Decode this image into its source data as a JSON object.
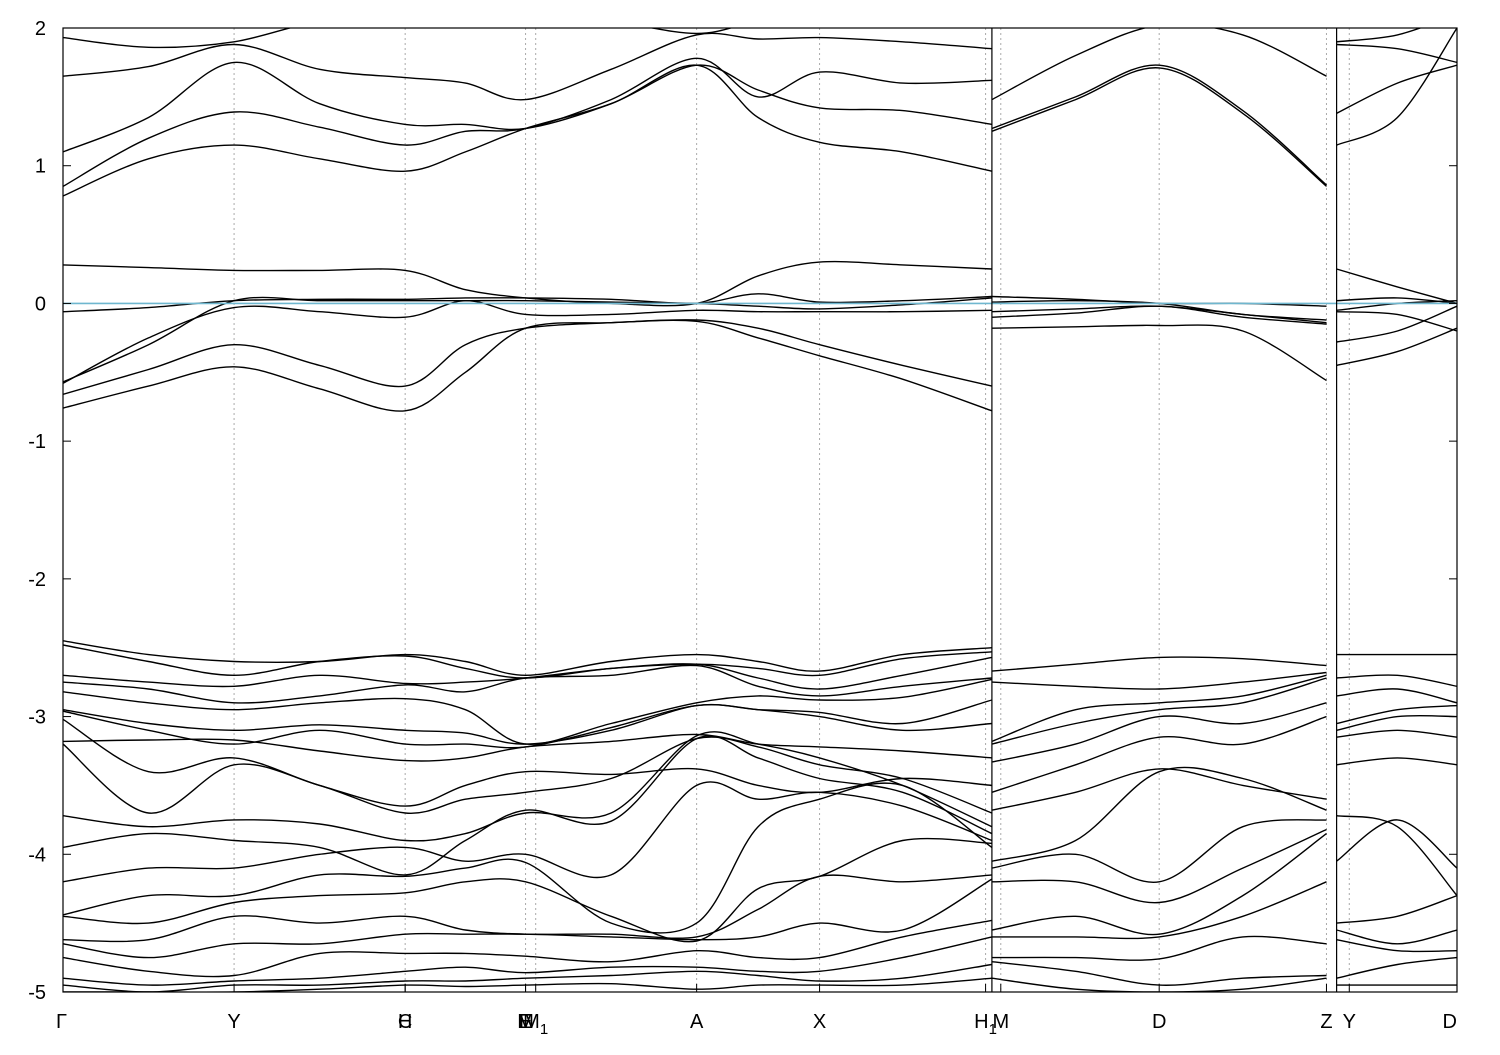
{
  "chart_data": {
    "type": "line",
    "title": "",
    "xlabel": "",
    "ylabel": "",
    "ylim": [
      -5,
      2
    ],
    "y_ticks": [
      -5,
      -4,
      -3,
      -2,
      -1,
      0,
      1,
      2
    ],
    "y_tick_labels": [
      "-5",
      "-4",
      "-3",
      "-2",
      "-1",
      "0",
      "1",
      "2"
    ],
    "x_range": [
      0,
      11
    ],
    "grid": "vertical dotted at high-symmetry points",
    "legend": "none",
    "fermi_level": 0,
    "colors": {
      "bands": "#000000",
      "fermi": "#6fb7cf",
      "grid": "#aaaaaa"
    },
    "high_symmetry_points": [
      {
        "label": "Γ",
        "x": 0
      },
      {
        "label": "Y",
        "x": 1.35
      },
      {
        "label": "C",
        "x": 2.7
      },
      {
        "label": "H",
        "x": 2.7
      },
      {
        "label": "M",
        "x": 3.65
      },
      {
        "label": "E",
        "x": 3.65
      },
      {
        "label": "M1",
        "x": 3.73
      },
      {
        "label": "A",
        "x": 5.0
      },
      {
        "label": "X",
        "x": 5.97
      },
      {
        "label": "H1",
        "x": 7.28
      },
      {
        "label": "M",
        "x": 7.4
      },
      {
        "label": "D",
        "x": 8.65
      },
      {
        "label": "Z",
        "x": 9.97
      },
      {
        "label": "Y",
        "x": 10.15
      },
      {
        "label": "D",
        "x": 11.0
      }
    ],
    "panel_breaks": [
      7.33,
      10.05
    ],
    "segments": [
      {
        "x": [
          0,
          0.675,
          1.35,
          2.025,
          2.7,
          3.175,
          3.65,
          4.325,
          5.0,
          5.485,
          5.97,
          6.625,
          7.33
        ],
        "bands": [
          [
            1.93,
            1.86,
            1.9,
            2.05,
            2.1,
            2.1,
            2.1,
            2.05,
            1.96,
            2.05,
            2.1,
            2.1,
            2.1
          ],
          [
            1.65,
            1.72,
            1.88,
            1.7,
            1.64,
            1.6,
            1.48,
            1.7,
            1.95,
            1.92,
            1.93,
            1.9,
            1.85
          ],
          [
            1.1,
            1.35,
            1.75,
            1.45,
            1.3,
            1.3,
            1.27,
            1.45,
            1.73,
            1.55,
            1.42,
            1.4,
            1.3
          ],
          [
            0.85,
            1.2,
            1.39,
            1.28,
            1.15,
            1.25,
            1.27,
            1.48,
            1.78,
            1.5,
            1.68,
            1.6,
            1.62
          ],
          [
            0.78,
            1.05,
            1.15,
            1.05,
            0.96,
            1.1,
            1.27,
            1.45,
            1.73,
            1.35,
            1.17,
            1.1,
            0.96
          ],
          [
            0.28,
            0.26,
            0.24,
            0.24,
            0.24,
            0.1,
            0.04,
            0.0,
            0.0,
            0.2,
            0.3,
            0.28,
            0.25
          ],
          [
            -0.06,
            -0.03,
            0.02,
            0.03,
            0.03,
            0.04,
            0.04,
            0.03,
            0.0,
            0.07,
            0.01,
            0.02,
            0.05
          ],
          [
            -0.57,
            -0.3,
            0.02,
            0.02,
            0.02,
            0.02,
            0.02,
            0.01,
            0.0,
            -0.02,
            -0.04,
            -0.01,
            0.04
          ],
          [
            -0.58,
            -0.25,
            -0.03,
            -0.06,
            -0.1,
            0.02,
            -0.08,
            -0.08,
            -0.05,
            -0.06,
            -0.06,
            -0.06,
            -0.05
          ],
          [
            -0.66,
            -0.48,
            -0.3,
            -0.45,
            -0.6,
            -0.3,
            -0.18,
            -0.14,
            -0.12,
            -0.18,
            -0.3,
            -0.45,
            -0.6
          ],
          [
            -0.76,
            -0.6,
            -0.46,
            -0.62,
            -0.78,
            -0.5,
            -0.18,
            -0.14,
            -0.13,
            -0.25,
            -0.38,
            -0.55,
            -0.78
          ],
          [
            -2.45,
            -2.55,
            -2.6,
            -2.6,
            -2.55,
            -2.6,
            -2.7,
            -2.6,
            -2.55,
            -2.6,
            -2.67,
            -2.55,
            -2.5
          ],
          [
            -2.48,
            -2.6,
            -2.7,
            -2.6,
            -2.56,
            -2.65,
            -2.72,
            -2.65,
            -2.62,
            -2.65,
            -2.7,
            -2.58,
            -2.53
          ],
          [
            -2.7,
            -2.75,
            -2.78,
            -2.7,
            -2.76,
            -2.75,
            -2.72,
            -2.65,
            -2.62,
            -2.72,
            -2.8,
            -2.7,
            -2.57
          ],
          [
            -2.75,
            -2.8,
            -2.9,
            -2.85,
            -2.77,
            -2.82,
            -2.72,
            -2.7,
            -2.63,
            -2.78,
            -2.85,
            -2.78,
            -2.72
          ],
          [
            -2.82,
            -2.9,
            -2.95,
            -2.9,
            -2.87,
            -2.95,
            -3.2,
            -3.05,
            -2.9,
            -2.85,
            -2.88,
            -2.86,
            -2.73
          ],
          [
            -2.95,
            -3.05,
            -3.1,
            -3.06,
            -3.1,
            -3.12,
            -3.2,
            -3.1,
            -2.92,
            -2.95,
            -2.97,
            -3.05,
            -2.88
          ],
          [
            -2.96,
            -3.1,
            -3.2,
            -3.1,
            -3.2,
            -3.2,
            -3.22,
            -3.08,
            -2.92,
            -2.95,
            -3.0,
            -3.1,
            -3.05
          ],
          [
            -3.18,
            -3.17,
            -3.17,
            -3.25,
            -3.32,
            -3.3,
            -3.22,
            -3.18,
            -3.13,
            -3.2,
            -3.22,
            -3.25,
            -3.3
          ],
          [
            -3.02,
            -3.4,
            -3.3,
            -3.5,
            -3.65,
            -3.5,
            -3.4,
            -3.42,
            -3.38,
            -3.5,
            -3.55,
            -3.45,
            -3.5
          ],
          [
            -3.2,
            -3.7,
            -3.35,
            -3.5,
            -3.7,
            -3.6,
            -3.55,
            -3.45,
            -3.16,
            -3.22,
            -3.35,
            -3.45,
            -3.7
          ],
          [
            -3.72,
            -3.8,
            -3.75,
            -3.78,
            -3.9,
            -3.85,
            -3.7,
            -3.7,
            -3.14,
            -3.2,
            -3.3,
            -3.5,
            -3.8
          ],
          [
            -3.95,
            -3.85,
            -3.9,
            -3.95,
            -4.15,
            -3.9,
            -3.68,
            -3.76,
            -3.16,
            -3.3,
            -3.45,
            -3.55,
            -3.85
          ],
          [
            -4.2,
            -4.1,
            -4.1,
            -4.0,
            -3.95,
            -4.05,
            -4.0,
            -4.15,
            -3.5,
            -3.6,
            -3.55,
            -3.65,
            -3.9
          ],
          [
            -4.44,
            -4.3,
            -4.3,
            -4.15,
            -4.16,
            -4.1,
            -4.06,
            -4.5,
            -4.5,
            -3.8,
            -3.6,
            -3.5,
            -3.95
          ],
          [
            -4.45,
            -4.5,
            -4.35,
            -4.3,
            -4.28,
            -4.2,
            -4.2,
            -4.45,
            -4.63,
            -4.25,
            -4.16,
            -3.9,
            -3.92
          ],
          [
            -4.62,
            -4.62,
            -4.45,
            -4.5,
            -4.45,
            -4.55,
            -4.58,
            -4.58,
            -4.6,
            -4.4,
            -4.16,
            -4.2,
            -4.15
          ],
          [
            -4.65,
            -4.75,
            -4.65,
            -4.65,
            -4.58,
            -4.58,
            -4.58,
            -4.6,
            -4.62,
            -4.6,
            -4.5,
            -4.55,
            -4.18
          ],
          [
            -4.75,
            -4.85,
            -4.88,
            -4.72,
            -4.72,
            -4.72,
            -4.74,
            -4.78,
            -4.7,
            -4.75,
            -4.75,
            -4.6,
            -4.48
          ],
          [
            -4.9,
            -4.95,
            -4.92,
            -4.9,
            -4.85,
            -4.82,
            -4.86,
            -4.82,
            -4.82,
            -4.85,
            -4.85,
            -4.75,
            -4.6
          ],
          [
            -4.95,
            -5.0,
            -4.95,
            -4.95,
            -4.92,
            -4.92,
            -4.9,
            -4.88,
            -4.85,
            -4.88,
            -4.92,
            -4.9,
            -4.8
          ],
          [
            -5.0,
            -5.0,
            -5.0,
            -4.98,
            -4.95,
            -4.96,
            -4.95,
            -4.94,
            -4.98,
            -4.95,
            -4.95,
            -4.95,
            -4.9
          ]
        ]
      },
      {
        "x": [
          7.33,
          7.99,
          8.65,
          9.31,
          9.97
        ],
        "bands": [
          [
            1.48,
            1.8,
            2.02,
            1.95,
            1.65
          ],
          [
            1.27,
            1.5,
            1.73,
            1.4,
            0.86
          ],
          [
            1.25,
            1.48,
            1.71,
            1.38,
            0.85
          ],
          [
            0.05,
            0.03,
            0.0,
            0.0,
            -0.02
          ],
          [
            0.01,
            0.02,
            0.0,
            -0.08,
            -0.12
          ],
          [
            -0.06,
            -0.04,
            -0.02,
            -0.08,
            -0.14
          ],
          [
            -0.1,
            -0.07,
            -0.02,
            -0.1,
            -0.15
          ],
          [
            -0.18,
            -0.17,
            -0.16,
            -0.2,
            -0.56
          ],
          [
            -2.67,
            -2.62,
            -2.57,
            -2.58,
            -2.63
          ],
          [
            -2.75,
            -2.78,
            -2.8,
            -2.75,
            -2.68
          ],
          [
            -3.18,
            -2.95,
            -2.9,
            -2.85,
            -2.7
          ],
          [
            -3.2,
            -3.05,
            -2.95,
            -2.9,
            -2.72
          ],
          [
            -3.33,
            -3.2,
            -3.0,
            -3.05,
            -2.9
          ],
          [
            -3.55,
            -3.35,
            -3.15,
            -3.2,
            -3.0
          ],
          [
            -3.68,
            -3.55,
            -3.38,
            -3.5,
            -3.6
          ],
          [
            -4.05,
            -3.9,
            -3.4,
            -3.45,
            -3.68
          ],
          [
            -4.1,
            -4.0,
            -4.2,
            -3.8,
            -3.75
          ],
          [
            -4.2,
            -4.2,
            -4.35,
            -4.1,
            -3.82
          ],
          [
            -4.55,
            -4.45,
            -4.58,
            -4.3,
            -3.85
          ],
          [
            -4.6,
            -4.6,
            -4.6,
            -4.45,
            -4.2
          ],
          [
            -4.75,
            -4.75,
            -4.76,
            -4.6,
            -4.65
          ],
          [
            -4.78,
            -4.85,
            -4.95,
            -4.9,
            -4.88
          ],
          [
            -4.9,
            -4.98,
            -5.0,
            -4.98,
            -4.9
          ]
        ]
      },
      {
        "x": [
          10.05,
          10.53,
          11.0
        ],
        "bands": [
          [
            1.9,
            1.95,
            2.1
          ],
          [
            1.88,
            1.85,
            1.75
          ],
          [
            1.38,
            1.6,
            1.73
          ],
          [
            1.15,
            1.35,
            2.0
          ],
          [
            0.25,
            0.12,
            0.0
          ],
          [
            0.02,
            0.04,
            0.0
          ],
          [
            -0.05,
            0.0,
            0.02
          ],
          [
            -0.06,
            -0.08,
            -0.2
          ],
          [
            -0.28,
            -0.2,
            -0.02
          ],
          [
            -0.45,
            -0.35,
            -0.18
          ],
          [
            -2.55,
            -2.55,
            -2.55
          ],
          [
            -2.72,
            -2.7,
            -2.78
          ],
          [
            -2.85,
            -2.8,
            -2.9
          ],
          [
            -3.05,
            -2.95,
            -2.92
          ],
          [
            -3.1,
            -3.0,
            -3.0
          ],
          [
            -3.15,
            -3.1,
            -3.15
          ],
          [
            -3.35,
            -3.3,
            -3.35
          ],
          [
            -3.72,
            -3.8,
            -4.3
          ],
          [
            -4.05,
            -3.75,
            -4.1
          ],
          [
            -4.5,
            -4.45,
            -4.3
          ],
          [
            -4.55,
            -4.65,
            -4.55
          ],
          [
            -4.62,
            -4.7,
            -4.7
          ],
          [
            -4.9,
            -4.8,
            -4.75
          ],
          [
            -4.95,
            -4.95,
            -4.95
          ]
        ]
      }
    ]
  }
}
